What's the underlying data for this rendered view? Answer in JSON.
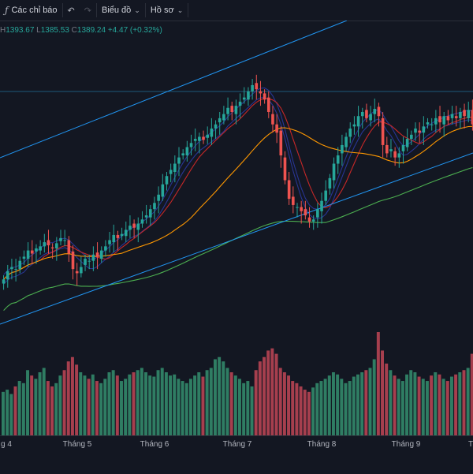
{
  "toolbar": {
    "indicators_label": "Các chỉ báo",
    "chart_label": "Biểu đồ",
    "profile_label": "Hồ sơ",
    "fx_icon": "function-icon",
    "undo_icon": "undo-icon",
    "redo_icon": "redo-icon"
  },
  "legend": {
    "h_label": "H",
    "h": "1393.67",
    "l_label": "L",
    "l": "1385.53",
    "c_label": "C",
    "c": "1389.24",
    "change": "+4.47 (+0.32%)"
  },
  "x_axis": {
    "labels": [
      "g 4",
      "Tháng 5",
      "Tháng 6",
      "Tháng 7",
      "Tháng 8",
      "Tháng 9",
      "T"
    ]
  },
  "colors": {
    "up": "#26a69a",
    "down": "#ef5350",
    "vol_up": "#2f7d63",
    "vol_down": "#a63f4e",
    "channel": "#2196f3",
    "ma_fast": "#c62828",
    "ma_mid": "#ff9800",
    "ma_slow": "#4caf50",
    "band": "#283593"
  },
  "chart_data": {
    "type": "candlestick",
    "closes": [
      1200,
      1208,
      1212,
      1210,
      1218,
      1222,
      1228,
      1225,
      1230,
      1232,
      1236,
      1233,
      1230,
      1235,
      1240,
      1238,
      1225,
      1210,
      1206,
      1212,
      1220,
      1218,
      1224,
      1222,
      1228,
      1232,
      1238,
      1243,
      1240,
      1244,
      1248,
      1252,
      1250,
      1254,
      1258,
      1262,
      1268,
      1274,
      1282,
      1292,
      1300,
      1306,
      1312,
      1318,
      1322,
      1328,
      1332,
      1336,
      1338,
      1335,
      1340,
      1346,
      1350,
      1356,
      1360,
      1366,
      1362,
      1368,
      1372,
      1376,
      1382,
      1388,
      1384,
      1380,
      1374,
      1362,
      1350,
      1342,
      1320,
      1296,
      1278,
      1272,
      1270,
      1266,
      1262,
      1256,
      1258,
      1268,
      1276,
      1286,
      1298,
      1312,
      1320,
      1330,
      1338,
      1346,
      1350,
      1358,
      1362,
      1356,
      1360,
      1365,
      1358,
      1330,
      1322,
      1326,
      1318,
      1322,
      1330,
      1336,
      1340,
      1346,
      1342,
      1348,
      1352,
      1350,
      1356,
      1352,
      1358,
      1354,
      1360,
      1356,
      1362,
      1358,
      1364,
      1350
    ],
    "volumes": [
      40,
      42,
      38,
      45,
      50,
      48,
      60,
      55,
      52,
      58,
      62,
      50,
      45,
      48,
      55,
      60,
      68,
      72,
      65,
      58,
      55,
      52,
      56,
      50,
      48,
      52,
      58,
      60,
      55,
      50,
      52,
      56,
      58,
      60,
      62,
      58,
      55,
      54,
      60,
      62,
      58,
      55,
      56,
      52,
      50,
      48,
      52,
      55,
      58,
      54,
      60,
      62,
      70,
      72,
      68,
      62,
      58,
      55,
      52,
      48,
      50,
      45,
      60,
      68,
      72,
      78,
      80,
      75,
      62,
      58,
      55,
      50,
      48,
      45,
      42,
      40,
      44,
      48,
      50,
      52,
      55,
      58,
      56,
      52,
      48,
      50,
      54,
      56,
      58,
      60,
      62,
      70,
      95,
      78,
      66,
      60,
      55,
      52,
      50,
      56,
      60,
      58,
      54,
      52,
      50,
      55,
      58,
      56,
      52,
      50,
      54,
      56,
      58,
      60,
      62,
      75
    ],
    "y_range": [
      1130,
      1420
    ]
  }
}
